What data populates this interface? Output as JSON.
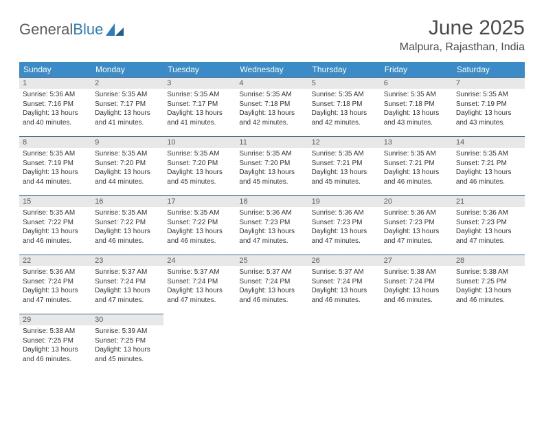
{
  "logo": {
    "text1": "General",
    "text2": "Blue"
  },
  "title": "June 2025",
  "location": "Malpura, Rajasthan, India",
  "header_bg": "#3b8bc9",
  "cell_border": "#3b6a8f",
  "daynum_bg": "#e8e8e8",
  "weekdays": [
    "Sunday",
    "Monday",
    "Tuesday",
    "Wednesday",
    "Thursday",
    "Friday",
    "Saturday"
  ],
  "labels": {
    "sunrise": "Sunrise:",
    "sunset": "Sunset:",
    "daylight": "Daylight:"
  },
  "days": [
    {
      "n": 1,
      "sunrise": "5:36 AM",
      "sunset": "7:16 PM",
      "daylight": "13 hours and 40 minutes."
    },
    {
      "n": 2,
      "sunrise": "5:35 AM",
      "sunset": "7:17 PM",
      "daylight": "13 hours and 41 minutes."
    },
    {
      "n": 3,
      "sunrise": "5:35 AM",
      "sunset": "7:17 PM",
      "daylight": "13 hours and 41 minutes."
    },
    {
      "n": 4,
      "sunrise": "5:35 AM",
      "sunset": "7:18 PM",
      "daylight": "13 hours and 42 minutes."
    },
    {
      "n": 5,
      "sunrise": "5:35 AM",
      "sunset": "7:18 PM",
      "daylight": "13 hours and 42 minutes."
    },
    {
      "n": 6,
      "sunrise": "5:35 AM",
      "sunset": "7:18 PM",
      "daylight": "13 hours and 43 minutes."
    },
    {
      "n": 7,
      "sunrise": "5:35 AM",
      "sunset": "7:19 PM",
      "daylight": "13 hours and 43 minutes."
    },
    {
      "n": 8,
      "sunrise": "5:35 AM",
      "sunset": "7:19 PM",
      "daylight": "13 hours and 44 minutes."
    },
    {
      "n": 9,
      "sunrise": "5:35 AM",
      "sunset": "7:20 PM",
      "daylight": "13 hours and 44 minutes."
    },
    {
      "n": 10,
      "sunrise": "5:35 AM",
      "sunset": "7:20 PM",
      "daylight": "13 hours and 45 minutes."
    },
    {
      "n": 11,
      "sunrise": "5:35 AM",
      "sunset": "7:20 PM",
      "daylight": "13 hours and 45 minutes."
    },
    {
      "n": 12,
      "sunrise": "5:35 AM",
      "sunset": "7:21 PM",
      "daylight": "13 hours and 45 minutes."
    },
    {
      "n": 13,
      "sunrise": "5:35 AM",
      "sunset": "7:21 PM",
      "daylight": "13 hours and 46 minutes."
    },
    {
      "n": 14,
      "sunrise": "5:35 AM",
      "sunset": "7:21 PM",
      "daylight": "13 hours and 46 minutes."
    },
    {
      "n": 15,
      "sunrise": "5:35 AM",
      "sunset": "7:22 PM",
      "daylight": "13 hours and 46 minutes."
    },
    {
      "n": 16,
      "sunrise": "5:35 AM",
      "sunset": "7:22 PM",
      "daylight": "13 hours and 46 minutes."
    },
    {
      "n": 17,
      "sunrise": "5:35 AM",
      "sunset": "7:22 PM",
      "daylight": "13 hours and 46 minutes."
    },
    {
      "n": 18,
      "sunrise": "5:36 AM",
      "sunset": "7:23 PM",
      "daylight": "13 hours and 47 minutes."
    },
    {
      "n": 19,
      "sunrise": "5:36 AM",
      "sunset": "7:23 PM",
      "daylight": "13 hours and 47 minutes."
    },
    {
      "n": 20,
      "sunrise": "5:36 AM",
      "sunset": "7:23 PM",
      "daylight": "13 hours and 47 minutes."
    },
    {
      "n": 21,
      "sunrise": "5:36 AM",
      "sunset": "7:23 PM",
      "daylight": "13 hours and 47 minutes."
    },
    {
      "n": 22,
      "sunrise": "5:36 AM",
      "sunset": "7:24 PM",
      "daylight": "13 hours and 47 minutes."
    },
    {
      "n": 23,
      "sunrise": "5:37 AM",
      "sunset": "7:24 PM",
      "daylight": "13 hours and 47 minutes."
    },
    {
      "n": 24,
      "sunrise": "5:37 AM",
      "sunset": "7:24 PM",
      "daylight": "13 hours and 47 minutes."
    },
    {
      "n": 25,
      "sunrise": "5:37 AM",
      "sunset": "7:24 PM",
      "daylight": "13 hours and 46 minutes."
    },
    {
      "n": 26,
      "sunrise": "5:37 AM",
      "sunset": "7:24 PM",
      "daylight": "13 hours and 46 minutes."
    },
    {
      "n": 27,
      "sunrise": "5:38 AM",
      "sunset": "7:24 PM",
      "daylight": "13 hours and 46 minutes."
    },
    {
      "n": 28,
      "sunrise": "5:38 AM",
      "sunset": "7:25 PM",
      "daylight": "13 hours and 46 minutes."
    },
    {
      "n": 29,
      "sunrise": "5:38 AM",
      "sunset": "7:25 PM",
      "daylight": "13 hours and 46 minutes."
    },
    {
      "n": 30,
      "sunrise": "5:39 AM",
      "sunset": "7:25 PM",
      "daylight": "13 hours and 45 minutes."
    }
  ],
  "start_weekday": 0,
  "total_cells": 35
}
